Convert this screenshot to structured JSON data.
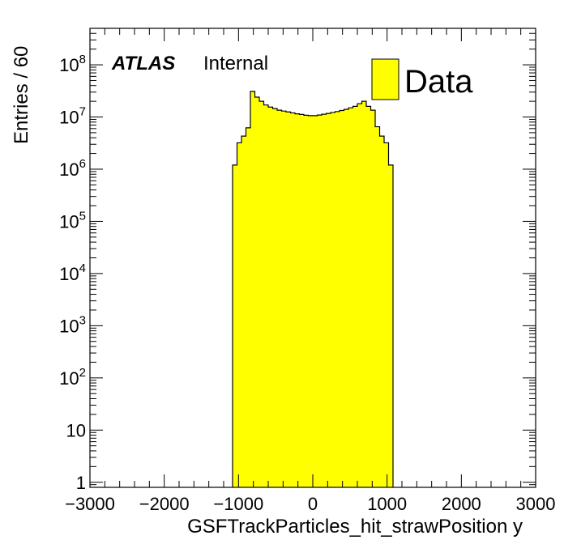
{
  "chart_data": {
    "type": "bar",
    "xlabel": "GSFTrackParticles_hit_strawPosition y",
    "ylabel": "Entries / 60",
    "xlim": [
      -3000,
      3000
    ],
    "ylim": [
      0.8,
      500000000
    ],
    "yscale": "log",
    "x_ticks": [
      {
        "value": -3000,
        "label": "−3000"
      },
      {
        "value": -2000,
        "label": "−2000"
      },
      {
        "value": -1000,
        "label": "−1000"
      },
      {
        "value": 0,
        "label": "0"
      },
      {
        "value": 1000,
        "label": "1000"
      },
      {
        "value": 2000,
        "label": "2000"
      },
      {
        "value": 3000,
        "label": "3000"
      }
    ],
    "y_ticks": [
      {
        "value": 1,
        "base": "1",
        "exp": ""
      },
      {
        "value": 10,
        "base": "10",
        "exp": ""
      },
      {
        "value": 100,
        "base": "10",
        "exp": "2"
      },
      {
        "value": 1000,
        "base": "10",
        "exp": "3"
      },
      {
        "value": 10000,
        "base": "10",
        "exp": "4"
      },
      {
        "value": 100000,
        "base": "10",
        "exp": "5"
      },
      {
        "value": 1000000,
        "base": "10",
        "exp": "6"
      },
      {
        "value": 10000000,
        "base": "10",
        "exp": "7"
      },
      {
        "value": 100000000,
        "base": "10",
        "exp": "8"
      }
    ],
    "grid": false,
    "legend_position": "top-right",
    "fill_color": "#ffff00",
    "line_color": "#000000",
    "experiment_label": "ATLAS",
    "status_label": "Internal",
    "series": [
      {
        "name": "Data",
        "bin_width": 60,
        "bins": [
          {
            "x0": -1080,
            "x1": -1020,
            "y": 1200000
          },
          {
            "x0": -1020,
            "x1": -960,
            "y": 3200000
          },
          {
            "x0": -960,
            "x1": -900,
            "y": 4300000
          },
          {
            "x0": -900,
            "x1": -840,
            "y": 6200000
          },
          {
            "x0": -840,
            "x1": -780,
            "y": 31000000
          },
          {
            "x0": -780,
            "x1": -720,
            "y": 24000000
          },
          {
            "x0": -720,
            "x1": -660,
            "y": 20000000
          },
          {
            "x0": -660,
            "x1": -600,
            "y": 17000000
          },
          {
            "x0": -600,
            "x1": -540,
            "y": 15500000
          },
          {
            "x0": -540,
            "x1": -480,
            "y": 14500000
          },
          {
            "x0": -480,
            "x1": -420,
            "y": 13500000
          },
          {
            "x0": -420,
            "x1": -360,
            "y": 13000000
          },
          {
            "x0": -360,
            "x1": -300,
            "y": 12500000
          },
          {
            "x0": -300,
            "x1": -240,
            "y": 12000000
          },
          {
            "x0": -240,
            "x1": -180,
            "y": 11500000
          },
          {
            "x0": -180,
            "x1": -120,
            "y": 11200000
          },
          {
            "x0": -120,
            "x1": -60,
            "y": 10800000
          },
          {
            "x0": -60,
            "x1": 0,
            "y": 10600000
          },
          {
            "x0": 0,
            "x1": 60,
            "y": 10600000
          },
          {
            "x0": 60,
            "x1": 120,
            "y": 10900000
          },
          {
            "x0": 120,
            "x1": 180,
            "y": 11300000
          },
          {
            "x0": 180,
            "x1": 240,
            "y": 11700000
          },
          {
            "x0": 240,
            "x1": 300,
            "y": 12200000
          },
          {
            "x0": 300,
            "x1": 360,
            "y": 12700000
          },
          {
            "x0": 360,
            "x1": 420,
            "y": 13300000
          },
          {
            "x0": 420,
            "x1": 480,
            "y": 14000000
          },
          {
            "x0": 480,
            "x1": 540,
            "y": 15000000
          },
          {
            "x0": 540,
            "x1": 600,
            "y": 16000000
          },
          {
            "x0": 600,
            "x1": 660,
            "y": 18000000
          },
          {
            "x0": 660,
            "x1": 720,
            "y": 20000000
          },
          {
            "x0": 720,
            "x1": 780,
            "y": 16000000
          },
          {
            "x0": 780,
            "x1": 840,
            "y": 13500000
          },
          {
            "x0": 840,
            "x1": 900,
            "y": 6500000
          },
          {
            "x0": 900,
            "x1": 960,
            "y": 4300000
          },
          {
            "x0": 960,
            "x1": 1020,
            "y": 3200000
          },
          {
            "x0": 1020,
            "x1": 1080,
            "y": 1200000
          }
        ]
      }
    ]
  }
}
